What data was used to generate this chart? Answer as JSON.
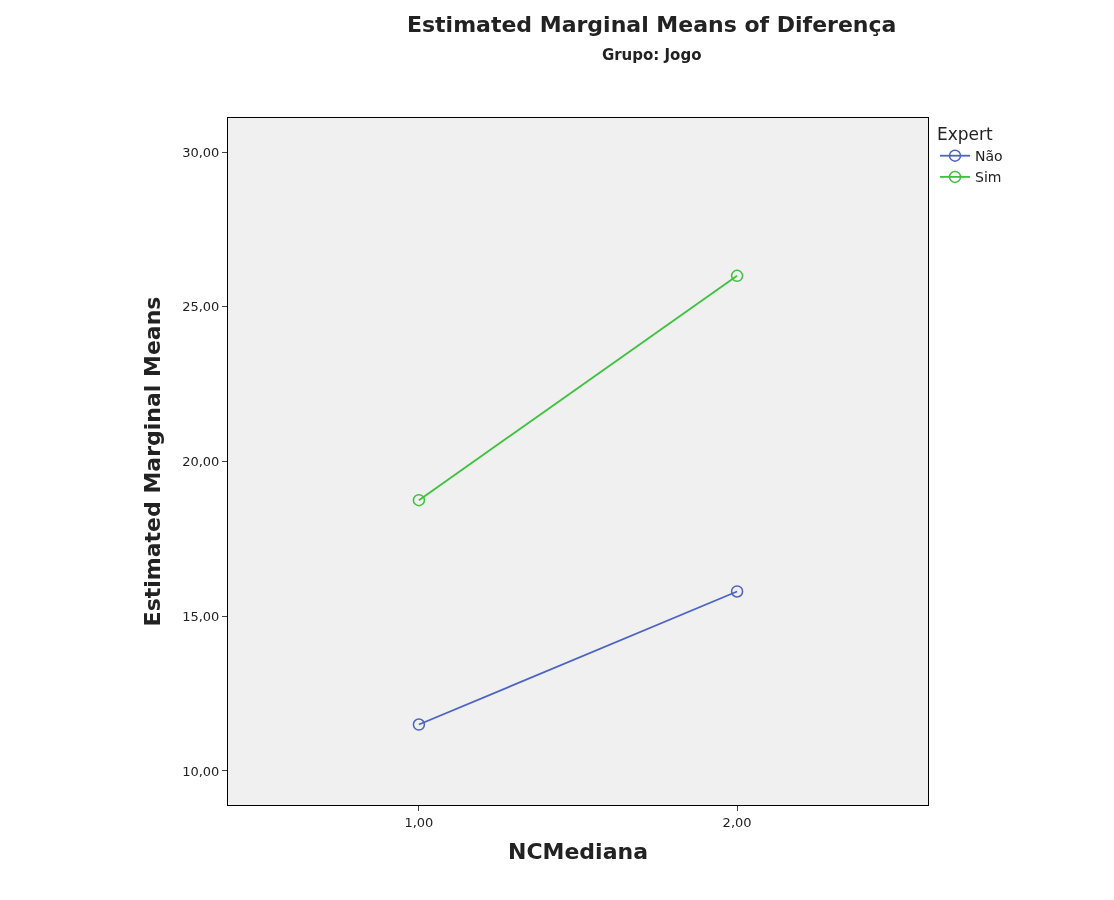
{
  "chart_data": {
    "type": "line",
    "title": "Estimated Marginal Means of Diferença",
    "subtitle": "Grupo: Jogo",
    "xlabel": "NCMediana",
    "ylabel": "Estimated Marginal Means",
    "legend_title": "Expert",
    "categories": [
      "1,00",
      "2,00"
    ],
    "series": [
      {
        "name": "Não",
        "color": "#4c63c4",
        "values": [
          11.5,
          15.8
        ]
      },
      {
        "name": "Sim",
        "color": "#3cc23c",
        "values": [
          18.75,
          26.0
        ]
      }
    ],
    "ylim": [
      8.9,
      31.1
    ],
    "yticks": [
      {
        "value": 10,
        "label": "10,00"
      },
      {
        "value": 15,
        "label": "15,00"
      },
      {
        "value": 20,
        "label": "20,00"
      },
      {
        "value": 25,
        "label": "25,00"
      },
      {
        "value": 30,
        "label": "30,00"
      }
    ],
    "marker": "circle",
    "legend": "top right",
    "grid": false
  }
}
